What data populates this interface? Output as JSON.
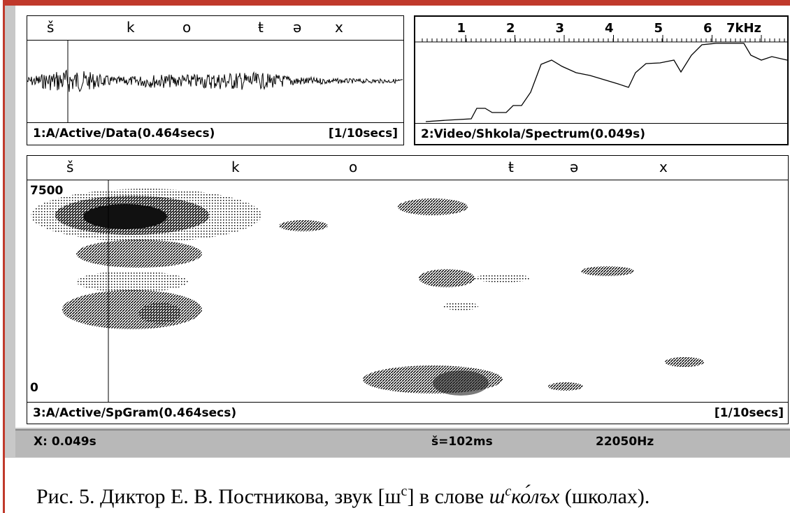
{
  "panel1": {
    "labels": [
      "š",
      "k",
      "o",
      "ŧ",
      "ə",
      "x"
    ],
    "title": "1:A/Active/Data(0.464secs)",
    "scale": "[1/10secs]"
  },
  "panel2": {
    "ticks": [
      "1",
      "2",
      "3",
      "4",
      "5",
      "6",
      "7kHz"
    ],
    "title": "2:Video/Shkola/Spectrum(0.049s)"
  },
  "panel3": {
    "labels": [
      "š",
      "k",
      "o",
      "ŧ",
      "ə",
      "x"
    ],
    "ymax": "7500",
    "ymin": "0",
    "title": "3:A/Active/SpGram(0.464secs)",
    "scale": "[1/10secs]"
  },
  "status": {
    "x": "X: 0.049s",
    "duration": "š=102ms",
    "rate": "22050Hz"
  },
  "caption": {
    "prefix": "Рис. 5. Диктор Е. В. Постникова, звук [ш",
    "sup": "с",
    "middle": "] в слове ",
    "word": "ш",
    "word_sup": "с",
    "word_rest": "ко́лъх",
    "suffix": " (школах)."
  }
}
